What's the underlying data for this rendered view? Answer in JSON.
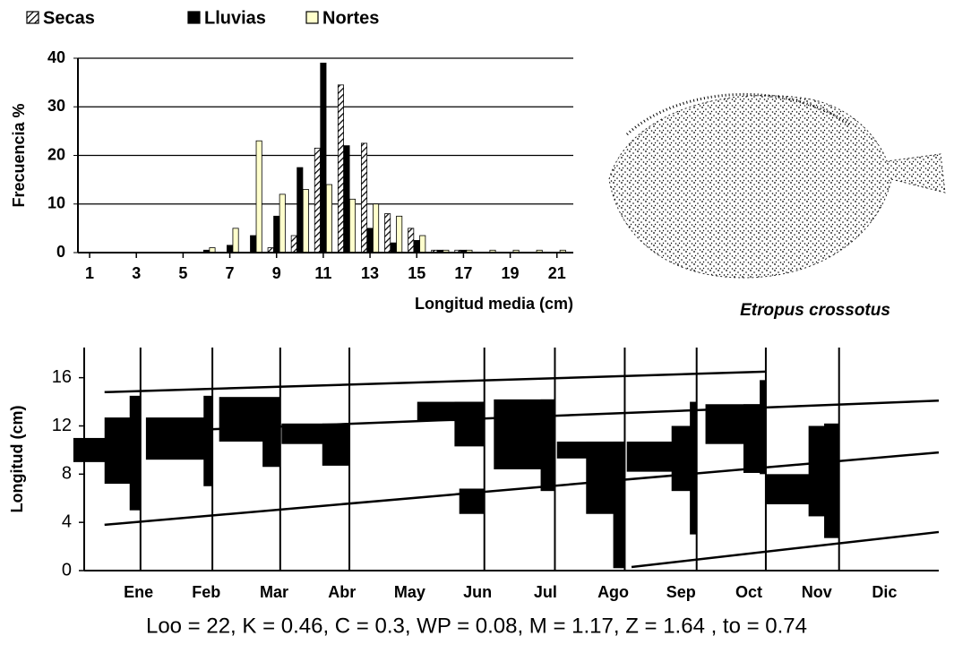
{
  "chart_data": [
    {
      "type": "bar",
      "y_label": "Frecuencia %",
      "x_label": "Longitud media (cm)",
      "x": [
        6,
        7,
        8,
        9,
        10,
        11,
        12,
        13,
        14,
        15,
        16,
        17,
        18,
        19,
        20,
        21
      ],
      "xlim": [
        0.5,
        21.7
      ],
      "xticks": [
        1,
        3,
        5,
        7,
        9,
        11,
        13,
        15,
        17,
        19,
        21
      ],
      "ylim": [
        0,
        40
      ],
      "yticks": [
        0,
        10,
        20,
        30,
        40
      ],
      "grid": true,
      "series": [
        {
          "name": "Secas",
          "color": "#000000",
          "values": [
            0,
            0,
            0,
            1,
            3.5,
            21.5,
            34.5,
            22.5,
            8,
            5,
            0.5,
            0.5,
            0,
            0,
            0,
            0
          ]
        },
        {
          "name": "Lluvias",
          "color": "#000000",
          "values": [
            0.5,
            1.5,
            3.5,
            7.5,
            17.5,
            39,
            22,
            5,
            2,
            2.5,
            0.5,
            0.5,
            0,
            0,
            0,
            0
          ]
        },
        {
          "name": "Nortes",
          "color": "#ffffcc",
          "values": [
            1,
            5,
            23,
            12,
            13,
            14,
            11,
            10,
            7.5,
            3.5,
            0.5,
            0.5,
            0.5,
            0.5,
            0.5,
            0.5
          ]
        }
      ]
    },
    {
      "type": "growth",
      "y_label": "Longitud (cm)",
      "categories": [
        "Ene",
        "Feb",
        "Mar",
        "Abr",
        "May",
        "Jun",
        "Jul",
        "Ago",
        "Sep",
        "Oct",
        "Nov",
        "Dic"
      ],
      "xlim": [
        -0.3,
        12.3
      ],
      "ylim": [
        0,
        18.5
      ],
      "yticks": [
        0,
        4,
        8,
        12,
        16
      ],
      "color": "#000000",
      "samples": [
        {
          "x": 0.53,
          "bars": [
            [
              9,
              11,
              0.99
            ],
            [
              7.2,
              12.7,
              0.53
            ],
            [
              5,
              14.5,
              0.16
            ]
          ]
        },
        {
          "x": 1.59,
          "bars": [
            [
              9.2,
              12.7,
              0.98
            ],
            [
              7,
              14.5,
              0.13
            ]
          ]
        },
        {
          "x": 2.59,
          "bars": [
            [
              10.7,
              14.4,
              0.9
            ],
            [
              8.6,
              12.2,
              0.26
            ]
          ]
        },
        {
          "x": 3.61,
          "bars": [
            [
              10.5,
              12.2,
              1.0
            ],
            [
              8.7,
              12.2,
              0.4
            ]
          ]
        },
        {
          "x": 5.6,
          "bars": [
            [
              12.4,
              14,
              0.99
            ],
            [
              10.3,
              14,
              0.44
            ],
            [
              4.7,
              6.8,
              0.37
            ]
          ]
        },
        {
          "x": 6.64,
          "bars": [
            [
              8.4,
              14.2,
              0.9
            ],
            [
              6.6,
              14.2,
              0.21
            ]
          ]
        },
        {
          "x": 7.67,
          "bars": [
            [
              9.3,
              10.7,
              1.0
            ],
            [
              4.7,
              10.7,
              0.57
            ],
            [
              0.2,
              10.7,
              0.17
            ]
          ]
        },
        {
          "x": 8.73,
          "bars": [
            [
              8.2,
              10.7,
              1.03
            ],
            [
              6.6,
              12,
              0.37
            ],
            [
              3,
              14,
              0.1
            ]
          ]
        },
        {
          "x": 9.75,
          "bars": [
            [
              10.5,
              13.8,
              0.89
            ],
            [
              8.1,
              13.8,
              0.33
            ],
            [
              8,
              15.8,
              0.09
            ]
          ]
        },
        {
          "x": 10.83,
          "bars": [
            [
              5.5,
              8,
              1.08
            ],
            [
              4.5,
              12,
              0.45
            ],
            [
              2.7,
              12.2,
              0.22
            ]
          ]
        }
      ],
      "curves": [
        {
          "x": [
            0,
            9.75
          ],
          "y": [
            14.8,
            16.5
          ]
        },
        {
          "x": [
            1.47,
            12.3
          ],
          "y": [
            11.7,
            14.1
          ]
        },
        {
          "x": [
            0,
            12.3
          ],
          "y": [
            3.8,
            9.8
          ]
        },
        {
          "x": [
            7.77,
            12.3
          ],
          "y": [
            0.3,
            3.2
          ]
        }
      ]
    }
  ],
  "figure": {
    "species": "Etropus crossotus",
    "parameters": "Loo = 22,  K = 0.46,  C = 0.3,  WP = 0.08, M = 1.17,  Z = 1.64 , to = 0.74"
  }
}
